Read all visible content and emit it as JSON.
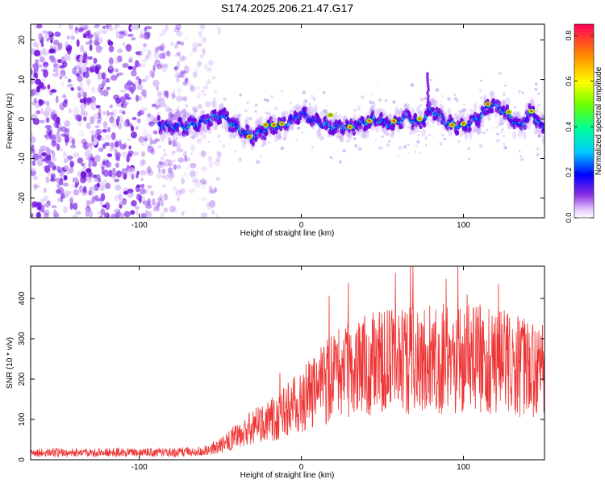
{
  "title": "S174.2025.206.21.47.G17",
  "colors": {
    "snr_line": "#ee3333",
    "axis": "#000000",
    "background": "#ffffff"
  },
  "chart_data": [
    {
      "type": "heatmap",
      "xlabel": "Height of straight line (km)",
      "ylabel": "Frequency (Hz)",
      "xlim": [
        -167,
        150
      ],
      "ylim": [
        -25,
        24
      ],
      "x_ticks": [
        -100,
        0,
        100
      ],
      "y_ticks": [
        -20,
        -10,
        0,
        10,
        20
      ],
      "colorbar": {
        "label": "Normalized spectral amplitude",
        "range": [
          0.0,
          0.85
        ],
        "ticks": [
          0.0,
          0.2,
          0.4,
          0.6,
          0.8
        ]
      },
      "noise_region_x": [
        -167,
        -55
      ],
      "ridge_x": [
        -90,
        -70,
        -50,
        -35,
        -30,
        -20,
        -10,
        0,
        10,
        20,
        30,
        45,
        55,
        65,
        72,
        77,
        80,
        90,
        100,
        110,
        117,
        125,
        135,
        142,
        150
      ],
      "ridge_y": [
        -1.5,
        -2,
        1.0,
        -3.5,
        -4.5,
        -2,
        -1.5,
        1.5,
        -1,
        -2,
        -2,
        0,
        -1.5,
        0.5,
        -1,
        0.5,
        2.5,
        -1,
        -2,
        0.5,
        4,
        2,
        -2,
        2,
        -3
      ]
    },
    {
      "type": "line",
      "xlabel": "Height of straight line (km)",
      "ylabel": "SNR (10 * v/v)",
      "xlim": [
        -167,
        150
      ],
      "ylim": [
        0,
        480
      ],
      "x_ticks": [
        -100,
        0,
        100
      ],
      "y_ticks": [
        0,
        100,
        200,
        300,
        400
      ],
      "envelope_x": [
        -167,
        -80,
        -60,
        -50,
        -40,
        -30,
        -20,
        -10,
        0,
        10,
        20,
        30,
        40,
        60,
        80,
        100,
        120,
        140,
        150
      ],
      "envelope_y": [
        18,
        18,
        22,
        35,
        60,
        80,
        95,
        120,
        145,
        175,
        205,
        225,
        235,
        245,
        250,
        250,
        245,
        225,
        215
      ]
    }
  ]
}
